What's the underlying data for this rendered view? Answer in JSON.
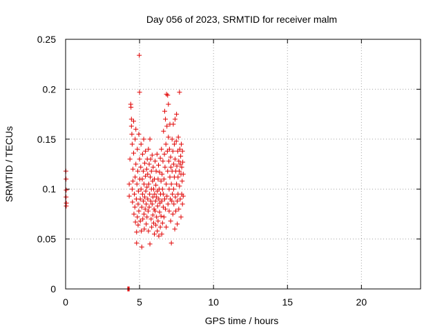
{
  "chart_data": {
    "type": "scatter",
    "title": "Day 056 of 2023, SRMTID for receiver malm",
    "xlabel": "GPS time / hours",
    "ylabel": "SRMTID / TECUs",
    "xlim": [
      0,
      24
    ],
    "ylim": [
      0,
      0.25
    ],
    "xticks": [
      0,
      5,
      10,
      15,
      20
    ],
    "xtick_labels": [
      "0",
      "5",
      "10",
      "15",
      "20"
    ],
    "yticks": [
      0,
      0.05,
      0.1,
      0.15,
      0.2,
      0.25
    ],
    "ytick_labels": [
      "0",
      "0.05",
      "0.1",
      "0.15",
      "0.2",
      "0.25"
    ],
    "grid": true,
    "marker": "+",
    "color": "#e00000",
    "points": [
      [
        0.02,
        0.118
      ],
      [
        0.03,
        0.11
      ],
      [
        0.04,
        0.099
      ],
      [
        0.03,
        0.092
      ],
      [
        0.05,
        0.086
      ],
      [
        0.04,
        0.083
      ],
      [
        4.2,
        0.0
      ],
      [
        4.25,
        0.0
      ],
      [
        4.3,
        0.0
      ],
      [
        4.3,
        0.105
      ],
      [
        4.3,
        0.093
      ],
      [
        4.35,
        0.13
      ],
      [
        4.4,
        0.185
      ],
      [
        4.42,
        0.182
      ],
      [
        4.45,
        0.17
      ],
      [
        4.45,
        0.163
      ],
      [
        4.48,
        0.155
      ],
      [
        4.5,
        0.145
      ],
      [
        4.5,
        0.1
      ],
      [
        4.52,
        0.087
      ],
      [
        4.55,
        0.12
      ],
      [
        4.55,
        0.108
      ],
      [
        4.6,
        0.168
      ],
      [
        4.6,
        0.136
      ],
      [
        4.62,
        0.075
      ],
      [
        4.65,
        0.095
      ],
      [
        4.68,
        0.082
      ],
      [
        4.7,
        0.15
      ],
      [
        4.7,
        0.112
      ],
      [
        4.72,
        0.067
      ],
      [
        4.75,
        0.16
      ],
      [
        4.75,
        0.125
      ],
      [
        4.78,
        0.09
      ],
      [
        4.8,
        0.057
      ],
      [
        4.8,
        0.046
      ],
      [
        4.82,
        0.105
      ],
      [
        4.85,
        0.14
      ],
      [
        4.85,
        0.072
      ],
      [
        4.88,
        0.118
      ],
      [
        4.9,
        0.085
      ],
      [
        4.9,
        0.064
      ],
      [
        4.92,
        0.098
      ],
      [
        4.95,
        0.155
      ],
      [
        4.95,
        0.078
      ],
      [
        4.98,
        0.234
      ],
      [
        5.0,
        0.197
      ],
      [
        5.0,
        0.13
      ],
      [
        5.02,
        0.11
      ],
      [
        5.05,
        0.09
      ],
      [
        5.05,
        0.068
      ],
      [
        5.08,
        0.122
      ],
      [
        5.1,
        0.145
      ],
      [
        5.1,
        0.1
      ],
      [
        5.12,
        0.058
      ],
      [
        5.15,
        0.082
      ],
      [
        5.15,
        0.042
      ],
      [
        5.18,
        0.11
      ],
      [
        5.2,
        0.135
      ],
      [
        5.2,
        0.095
      ],
      [
        5.22,
        0.07
      ],
      [
        5.25,
        0.118
      ],
      [
        5.25,
        0.088
      ],
      [
        5.28,
        0.15
      ],
      [
        5.3,
        0.105
      ],
      [
        5.3,
        0.075
      ],
      [
        5.32,
        0.06
      ],
      [
        5.35,
        0.126
      ],
      [
        5.35,
        0.092
      ],
      [
        5.38,
        0.08
      ],
      [
        5.4,
        0.138
      ],
      [
        5.4,
        0.113
      ],
      [
        5.42,
        0.098
      ],
      [
        5.45,
        0.085
      ],
      [
        5.45,
        0.065
      ],
      [
        5.48,
        0.12
      ],
      [
        5.5,
        0.102
      ],
      [
        5.5,
        0.072
      ],
      [
        5.52,
        0.13
      ],
      [
        5.55,
        0.115
      ],
      [
        5.55,
        0.09
      ],
      [
        5.58,
        0.078
      ],
      [
        5.6,
        0.14
      ],
      [
        5.6,
        0.058
      ],
      [
        5.62,
        0.105
      ],
      [
        5.65,
        0.125
      ],
      [
        5.65,
        0.082
      ],
      [
        5.68,
        0.095
      ],
      [
        5.7,
        0.15
      ],
      [
        5.7,
        0.045
      ],
      [
        5.72,
        0.112
      ],
      [
        5.75,
        0.13
      ],
      [
        5.75,
        0.088
      ],
      [
        5.78,
        0.07
      ],
      [
        5.8,
        0.118
      ],
      [
        5.8,
        0.1
      ],
      [
        5.82,
        0.062
      ],
      [
        5.85,
        0.134
      ],
      [
        5.85,
        0.085
      ],
      [
        5.88,
        0.108
      ],
      [
        5.9,
        0.092
      ],
      [
        5.9,
        0.074
      ],
      [
        5.92,
        0.122
      ],
      [
        5.95,
        0.1
      ],
      [
        5.95,
        0.066
      ],
      [
        5.98,
        0.08
      ],
      [
        6.0,
        0.11
      ],
      [
        6.0,
        0.055
      ],
      [
        6.02,
        0.095
      ],
      [
        6.05,
        0.128
      ],
      [
        6.05,
        0.078
      ],
      [
        6.08,
        0.088
      ],
      [
        6.1,
        0.104
      ],
      [
        6.1,
        0.064
      ],
      [
        6.12,
        0.118
      ],
      [
        6.15,
        0.092
      ],
      [
        6.15,
        0.072
      ],
      [
        6.18,
        0.135
      ],
      [
        6.2,
        0.098
      ],
      [
        6.2,
        0.058
      ],
      [
        6.22,
        0.083
      ],
      [
        6.25,
        0.11
      ],
      [
        6.25,
        0.068
      ],
      [
        6.28,
        0.124
      ],
      [
        6.3,
        0.09
      ],
      [
        6.3,
        0.053
      ],
      [
        6.32,
        0.1
      ],
      [
        6.35,
        0.077
      ],
      [
        6.35,
        0.117
      ],
      [
        6.38,
        0.086
      ],
      [
        6.4,
        0.131
      ],
      [
        6.4,
        0.062
      ],
      [
        6.42,
        0.095
      ],
      [
        6.45,
        0.108
      ],
      [
        6.45,
        0.073
      ],
      [
        6.48,
        0.14
      ],
      [
        6.5,
        0.088
      ],
      [
        6.5,
        0.055
      ],
      [
        6.52,
        0.115
      ],
      [
        6.55,
        0.1
      ],
      [
        6.55,
        0.066
      ],
      [
        6.58,
        0.128
      ],
      [
        6.6,
        0.082
      ],
      [
        6.6,
        0.095
      ],
      [
        6.62,
        0.158
      ],
      [
        6.65,
        0.11
      ],
      [
        6.65,
        0.072
      ],
      [
        6.68,
        0.135
      ],
      [
        6.7,
        0.09
      ],
      [
        6.7,
        0.178
      ],
      [
        6.72,
        0.122
      ],
      [
        6.75,
        0.17
      ],
      [
        6.75,
        0.08
      ],
      [
        6.78,
        0.145
      ],
      [
        6.8,
        0.105
      ],
      [
        6.8,
        0.062
      ],
      [
        6.82,
        0.195
      ],
      [
        6.85,
        0.163
      ],
      [
        6.85,
        0.093
      ],
      [
        6.88,
        0.138
      ],
      [
        6.9,
        0.194
      ],
      [
        6.9,
        0.118
      ],
      [
        6.92,
        0.085
      ],
      [
        6.95,
        0.185
      ],
      [
        6.95,
        0.152
      ],
      [
        6.98,
        0.128
      ],
      [
        7.0,
        0.1
      ],
      [
        7.0,
        0.078
      ],
      [
        7.02,
        0.14
      ],
      [
        7.05,
        0.165
      ],
      [
        7.05,
        0.112
      ],
      [
        7.08,
        0.09
      ],
      [
        7.1,
        0.132
      ],
      [
        7.1,
        0.068
      ],
      [
        7.12,
        0.122
      ],
      [
        7.15,
        0.105
      ],
      [
        7.15,
        0.046
      ],
      [
        7.18,
        0.088
      ],
      [
        7.2,
        0.15
      ],
      [
        7.2,
        0.118
      ],
      [
        7.22,
        0.095
      ],
      [
        7.25,
        0.138
      ],
      [
        7.25,
        0.075
      ],
      [
        7.28,
        0.165
      ],
      [
        7.3,
        0.125
      ],
      [
        7.3,
        0.1
      ],
      [
        7.32,
        0.085
      ],
      [
        7.35,
        0.145
      ],
      [
        7.35,
        0.112
      ],
      [
        7.38,
        0.06
      ],
      [
        7.4,
        0.17
      ],
      [
        7.4,
        0.13
      ],
      [
        7.42,
        0.092
      ],
      [
        7.45,
        0.118
      ],
      [
        7.45,
        0.078
      ],
      [
        7.48,
        0.148
      ],
      [
        7.5,
        0.105
      ],
      [
        7.5,
        0.175
      ],
      [
        7.52,
        0.123
      ],
      [
        7.55,
        0.088
      ],
      [
        7.55,
        0.065
      ],
      [
        7.58,
        0.138
      ],
      [
        7.6,
        0.112
      ],
      [
        7.6,
        0.095
      ],
      [
        7.62,
        0.152
      ],
      [
        7.65,
        0.128
      ],
      [
        7.65,
        0.08
      ],
      [
        7.68,
        0.118
      ],
      [
        7.7,
        0.197
      ],
      [
        7.7,
        0.103
      ],
      [
        7.72,
        0.14
      ],
      [
        7.75,
        0.125
      ],
      [
        7.75,
        0.09
      ],
      [
        7.78,
        0.133
      ],
      [
        7.8,
        0.115
      ],
      [
        7.8,
        0.072
      ],
      [
        7.82,
        0.145
      ],
      [
        7.85,
        0.122
      ],
      [
        7.85,
        0.095
      ],
      [
        7.88,
        0.108
      ],
      [
        7.9,
        0.138
      ],
      [
        7.9,
        0.085
      ],
      [
        7.92,
        0.127
      ],
      [
        7.95,
        0.115
      ],
      [
        7.95,
        0.093
      ]
    ]
  }
}
